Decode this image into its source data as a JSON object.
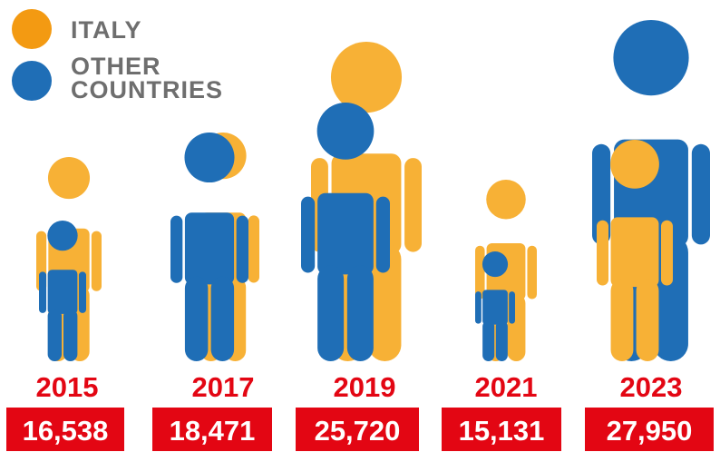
{
  "colors": {
    "italy": "#F7B136",
    "italy_legend": "#F39A12",
    "other": "#1F6EB6",
    "accent": "#E30613"
  },
  "legend": {
    "italy": "ITALY",
    "other_line1": "OTHER",
    "other_line2": "COUNTRIES"
  },
  "chart_data": {
    "type": "pictogram",
    "title": "",
    "xlabel": "",
    "ylabel": "",
    "legend_position": "top-left",
    "categories": [
      "2015",
      "2017",
      "2019",
      "2021",
      "2023"
    ],
    "totals": [
      "16,538",
      "18,471",
      "25,720",
      "15,131",
      "27,950"
    ],
    "totals_values": [
      16538,
      18471,
      25720,
      15131,
      27950
    ],
    "series": [
      {
        "name": "ITALY",
        "color": "#F7B136"
      },
      {
        "name": "OTHER COUNTRIES",
        "color": "#1F6EB6"
      }
    ]
  }
}
